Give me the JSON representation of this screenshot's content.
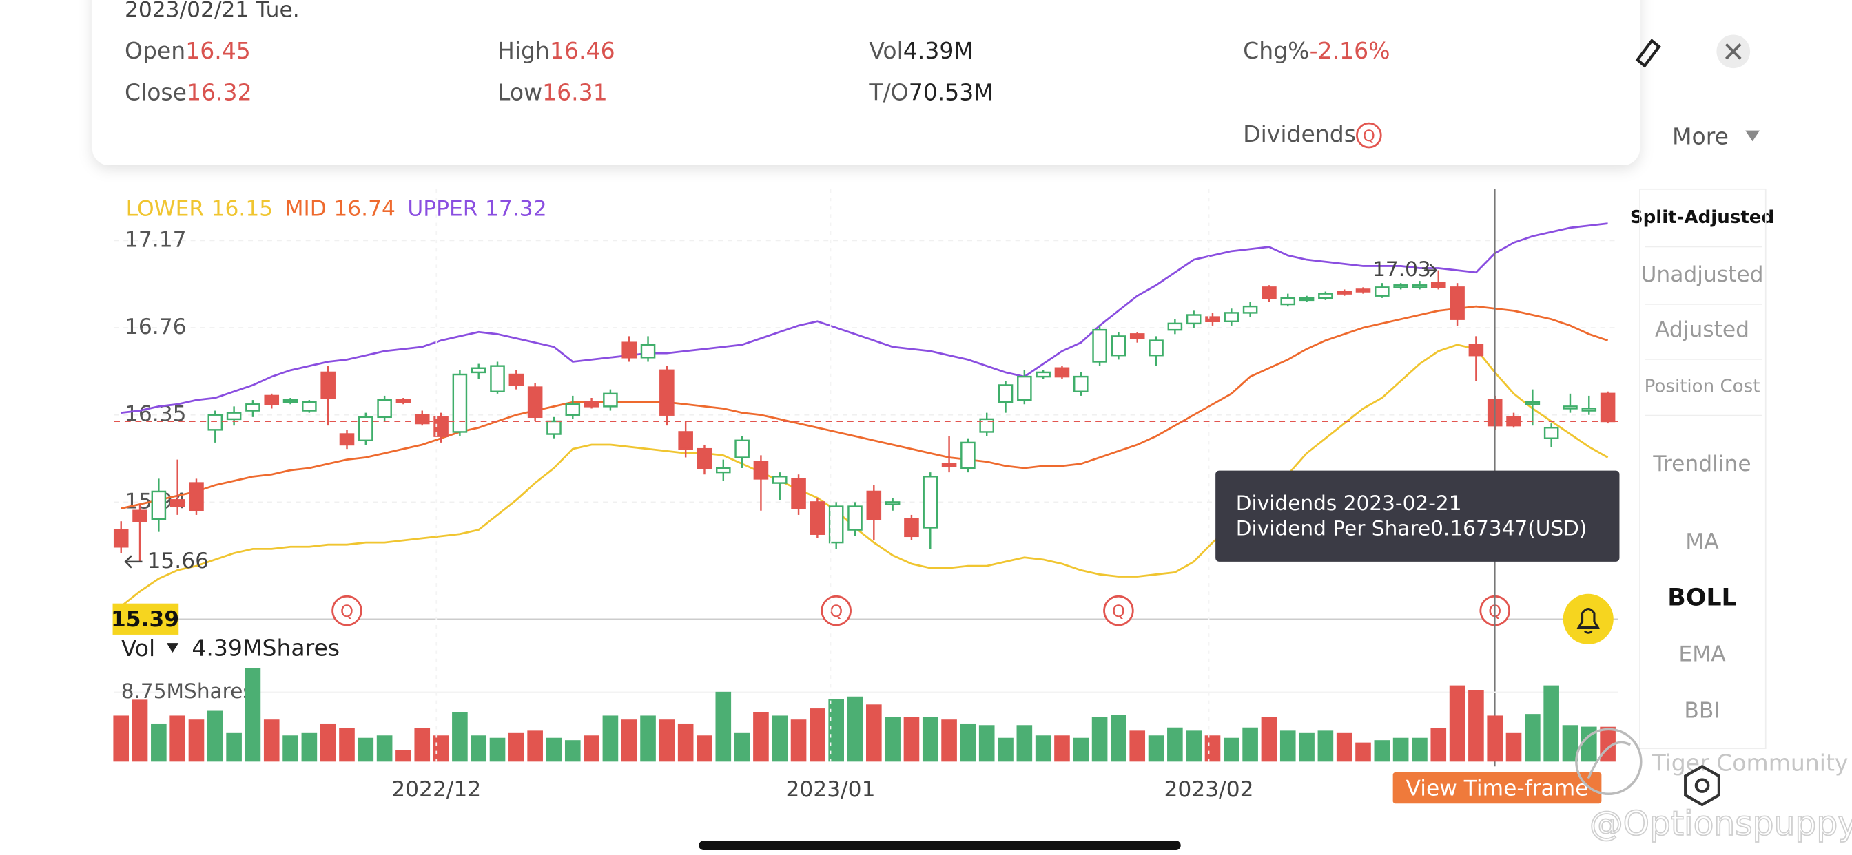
{
  "header": {
    "date": "2023/02/21 Tue.",
    "fields": [
      {
        "label": "Open",
        "value": "16.45",
        "color": "#d9534f"
      },
      {
        "label": "High",
        "value": "16.46",
        "color": "#d9534f"
      },
      {
        "label": "Vol",
        "value": "4.39M",
        "color": "#222222"
      },
      {
        "label": "Chg%",
        "value": "-2.16%",
        "color": "#d9534f"
      },
      {
        "label": "Close",
        "value": "16.32",
        "color": "#d9534f"
      },
      {
        "label": "Low",
        "value": "16.31",
        "color": "#d9534f"
      },
      {
        "label": "T/O",
        "value": "70.53M",
        "color": "#222222"
      }
    ],
    "dividends": "Dividends",
    "dividend_icon": "Q"
  },
  "more": "More",
  "side_menu": [
    {
      "text": "Split-Adjusted",
      "active": true
    },
    {
      "text": "Unadjusted",
      "active": false
    },
    {
      "text": "Adjusted",
      "active": false
    },
    {
      "text": "Position Cost",
      "active": false
    },
    {
      "text": "Trendline",
      "active": false
    },
    {
      "text": "MA",
      "active": false
    },
    {
      "text": "BOLL",
      "active": true
    },
    {
      "text": "EMA",
      "active": false
    },
    {
      "text": "BBI",
      "active": false
    }
  ],
  "chart_data": {
    "type": "candlestick",
    "up_color": "#3fae6a",
    "down_color": "#e2554f",
    "ylim": [
      15.39,
      17.4
    ],
    "yticks": [
      17.17,
      16.76,
      16.35,
      15.94
    ],
    "grid": true,
    "xticks": [
      {
        "value": 16.75,
        "label": "2022/12"
      },
      {
        "value": 37.7,
        "label": "2023/01"
      },
      {
        "value": 57.8,
        "label": "2023/02"
      }
    ],
    "open": [
      15.81,
      15.9,
      15.86,
      15.95,
      16.03,
      16.28,
      16.33,
      16.37,
      16.44,
      16.41,
      16.37,
      16.55,
      16.26,
      16.23,
      16.34,
      16.42,
      16.35,
      16.34,
      16.27,
      16.55,
      16.46,
      16.54,
      16.48,
      16.26,
      16.35,
      16.41,
      16.39,
      16.69,
      16.62,
      16.56,
      16.27,
      16.19,
      16.08,
      16.15,
      16.13,
      16.03,
      16.05,
      15.94,
      15.75,
      15.81,
      15.99,
      15.93,
      15.86,
      15.82,
      16.12,
      16.1,
      16.27,
      16.41,
      16.42,
      16.53,
      16.57,
      16.46,
      16.6,
      16.63,
      16.73,
      16.63,
      16.75,
      16.78,
      16.81,
      16.79,
      16.83,
      16.95,
      16.87,
      16.89,
      16.9,
      16.93,
      16.94,
      16.91,
      16.95,
      16.95,
      16.97,
      16.95,
      16.68,
      16.42,
      16.34,
      16.4,
      16.24,
      16.38,
      16.37,
      16.45
    ],
    "high": [
      15.85,
      15.93,
      16.05,
      16.14,
      16.05,
      16.37,
      16.39,
      16.42,
      16.45,
      16.43,
      16.42,
      16.58,
      16.28,
      16.36,
      16.44,
      16.43,
      16.37,
      16.36,
      16.56,
      16.59,
      16.6,
      16.56,
      16.5,
      16.34,
      16.44,
      16.43,
      16.47,
      16.72,
      16.72,
      16.58,
      16.32,
      16.21,
      16.14,
      16.25,
      16.16,
      16.08,
      16.07,
      15.96,
      15.94,
      15.94,
      16.02,
      15.96,
      15.88,
      16.08,
      16.25,
      16.24,
      16.36,
      16.51,
      16.56,
      16.56,
      16.58,
      16.55,
      16.77,
      16.74,
      16.74,
      16.72,
      16.8,
      16.84,
      16.83,
      16.85,
      16.88,
      16.96,
      16.92,
      16.91,
      16.93,
      16.94,
      16.95,
      16.97,
      16.97,
      16.98,
      17.03,
      16.97,
      16.72,
      16.44,
      16.36,
      16.47,
      16.31,
      16.45,
      16.44,
      16.46
    ],
    "low": [
      15.7,
      15.66,
      15.8,
      15.88,
      15.88,
      16.22,
      16.3,
      16.34,
      16.38,
      16.4,
      16.36,
      16.3,
      16.19,
      16.21,
      16.32,
      16.4,
      16.3,
      16.22,
      16.25,
      16.52,
      16.45,
      16.47,
      16.32,
      16.24,
      16.33,
      16.38,
      16.37,
      16.6,
      16.6,
      16.3,
      16.15,
      16.07,
      16.04,
      16.1,
      15.9,
      15.95,
      15.88,
      15.77,
      15.72,
      15.78,
      15.76,
      15.9,
      15.76,
      15.72,
      16.08,
      16.08,
      16.25,
      16.36,
      16.4,
      16.52,
      16.52,
      16.44,
      16.58,
      16.61,
      16.69,
      16.58,
      16.73,
      16.76,
      16.77,
      16.77,
      16.81,
      16.88,
      16.86,
      16.88,
      16.89,
      16.91,
      16.92,
      16.9,
      16.94,
      16.94,
      16.94,
      16.77,
      16.51,
      16.28,
      16.29,
      16.3,
      16.2,
      16.36,
      16.35,
      16.31
    ],
    "close": [
      15.73,
      15.85,
      15.99,
      15.92,
      15.9,
      16.35,
      16.36,
      16.4,
      16.4,
      16.42,
      16.41,
      16.43,
      16.21,
      16.34,
      16.42,
      16.41,
      16.31,
      16.25,
      16.54,
      16.57,
      16.58,
      16.49,
      16.34,
      16.32,
      16.4,
      16.39,
      16.45,
      16.62,
      16.68,
      16.35,
      16.19,
      16.1,
      16.1,
      16.23,
      16.05,
      16.06,
      15.91,
      15.79,
      15.92,
      15.92,
      15.86,
      15.94,
      15.78,
      16.06,
      16.11,
      16.22,
      16.33,
      16.49,
      16.53,
      16.55,
      16.53,
      16.53,
      16.75,
      16.72,
      16.71,
      16.7,
      16.78,
      16.82,
      16.79,
      16.83,
      16.86,
      16.9,
      16.9,
      16.9,
      16.92,
      16.92,
      16.93,
      16.95,
      16.96,
      16.96,
      16.95,
      16.8,
      16.63,
      16.3,
      16.3,
      16.41,
      16.29,
      16.39,
      16.38,
      16.32
    ],
    "series": [
      {
        "name": "LOWER",
        "legend_value": 16.15,
        "color": "#f0c530",
        "values": [
          15.45,
          15.52,
          15.58,
          15.62,
          15.64,
          15.67,
          15.7,
          15.72,
          15.72,
          15.73,
          15.73,
          15.74,
          15.74,
          15.75,
          15.75,
          15.76,
          15.77,
          15.78,
          15.79,
          15.81,
          15.88,
          15.95,
          16.03,
          16.1,
          16.19,
          16.21,
          16.21,
          16.2,
          16.19,
          16.18,
          16.17,
          16.17,
          16.16,
          16.12,
          16.08,
          16.04,
          16.0,
          15.96,
          15.9,
          15.82,
          15.75,
          15.69,
          15.65,
          15.63,
          15.63,
          15.64,
          15.64,
          15.66,
          15.68,
          15.67,
          15.65,
          15.62,
          15.6,
          15.59,
          15.59,
          15.6,
          15.61,
          15.66,
          15.75,
          15.83,
          15.9,
          15.96,
          16.07,
          16.17,
          16.24,
          16.31,
          16.38,
          16.43,
          16.51,
          16.59,
          16.65,
          16.68,
          16.66,
          16.55,
          16.45,
          16.38,
          16.32,
          16.26,
          16.2,
          16.15
        ]
      },
      {
        "name": "MID",
        "legend_value": 16.74,
        "color": "#ee6a2e",
        "values": [
          15.91,
          15.93,
          15.95,
          15.97,
          15.99,
          16.02,
          16.04,
          16.06,
          16.07,
          16.09,
          16.1,
          16.12,
          16.14,
          16.15,
          16.17,
          16.19,
          16.21,
          16.24,
          16.27,
          16.29,
          16.32,
          16.35,
          16.37,
          16.39,
          16.41,
          16.41,
          16.41,
          16.41,
          16.41,
          16.41,
          16.4,
          16.39,
          16.38,
          16.36,
          16.35,
          16.33,
          16.31,
          16.29,
          16.27,
          16.25,
          16.23,
          16.21,
          16.19,
          16.17,
          16.15,
          16.14,
          16.13,
          16.11,
          16.1,
          16.11,
          16.11,
          16.12,
          16.15,
          16.18,
          16.21,
          16.25,
          16.3,
          16.35,
          16.4,
          16.45,
          16.53,
          16.57,
          16.61,
          16.66,
          16.7,
          16.73,
          16.76,
          16.78,
          16.8,
          16.82,
          16.84,
          16.85,
          16.86,
          16.85,
          16.84,
          16.82,
          16.8,
          16.77,
          16.73,
          16.7
        ]
      },
      {
        "name": "UPPER",
        "legend_value": 17.32,
        "color": "#8a4ee0",
        "values": [
          16.36,
          16.37,
          16.39,
          16.4,
          16.42,
          16.43,
          16.46,
          16.49,
          16.53,
          16.56,
          16.58,
          16.6,
          16.61,
          16.63,
          16.65,
          16.66,
          16.67,
          16.7,
          16.72,
          16.74,
          16.73,
          16.71,
          16.69,
          16.67,
          16.6,
          16.61,
          16.62,
          16.63,
          16.64,
          16.64,
          16.65,
          16.66,
          16.67,
          16.68,
          16.71,
          16.74,
          16.77,
          16.79,
          16.76,
          16.73,
          16.7,
          16.67,
          16.66,
          16.65,
          16.63,
          16.61,
          16.58,
          16.55,
          16.53,
          16.59,
          16.65,
          16.69,
          16.77,
          16.84,
          16.91,
          16.96,
          17.02,
          17.08,
          17.1,
          17.12,
          17.13,
          17.14,
          17.1,
          17.08,
          17.07,
          17.06,
          17.05,
          17.05,
          17.05,
          17.04,
          17.04,
          17.03,
          17.02,
          17.11,
          17.16,
          17.19,
          17.21,
          17.23,
          17.24,
          17.25
        ]
      }
    ],
    "high_marker": {
      "value": 17.03,
      "at": 70
    },
    "low_marker": {
      "value": 15.66,
      "at": 1
    },
    "price_badge": 15.39,
    "dividends": {
      "label": "Q",
      "at": [
        12,
        38,
        53,
        73
      ]
    },
    "volume": {
      "label": "Vol",
      "current": "4.39MShares",
      "ylim": [
        0,
        8.75
      ],
      "yticks": [
        {
          "value": 8.75,
          "label": "8.75MShares"
        }
      ],
      "values": [
        5.8,
        7.8,
        4.8,
        5.8,
        5.3,
        6.4,
        3.6,
        11.8,
        5.3,
        3.3,
        3.6,
        4.8,
        4.2,
        3.0,
        3.3,
        1.5,
        4.2,
        3.3,
        6.2,
        3.3,
        3.0,
        3.6,
        3.9,
        3.0,
        2.7,
        3.3,
        5.8,
        5.3,
        5.8,
        5.3,
        4.8,
        3.3,
        8.8,
        3.6,
        6.2,
        5.8,
        5.3,
        6.7,
        7.9,
        8.2,
        7.2,
        5.6,
        5.6,
        5.6,
        5.3,
        4.8,
        4.6,
        3.0,
        4.6,
        3.3,
        3.3,
        3.0,
        5.6,
        5.9,
        3.9,
        3.3,
        4.3,
        3.9,
        3.3,
        3.0,
        4.3,
        5.6,
        3.9,
        3.6,
        3.9,
        3.6,
        2.4,
        2.7,
        3.0,
        3.0,
        4.2,
        9.6,
        9.0,
        5.8,
        3.6,
        6.0,
        9.6,
        4.6,
        4.4,
        4.39
      ]
    }
  },
  "tooltip": {
    "line1": "Dividends 2023-02-21",
    "line2": "Dividend Per Share0.167347(USD)"
  },
  "button": "View Time-frame",
  "watermarks": [
    "Tiger Community",
    "@Optionspuppy"
  ]
}
